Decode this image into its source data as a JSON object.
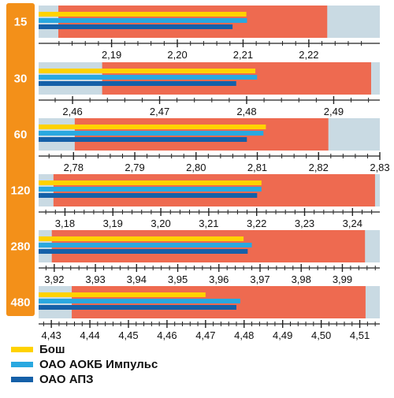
{
  "chart_data": {
    "type": "bar",
    "style": "horizontal bars in bullet-style panels, one independent axis per category",
    "colors": {
      "sidebar": "#F39019",
      "range_bg": "#C9DAE3",
      "range_fill": "#EE6A50",
      "series": [
        "#FFD200",
        "#29A8E0",
        "#1560A8"
      ]
    },
    "series": [
      {
        "name": "Бош"
      },
      {
        "name": "ОАО АОКБ Импульс"
      },
      {
        "name": "ОАО АПЗ"
      }
    ],
    "groups": [
      {
        "category": "15",
        "axis": {
          "min": 2.1789,
          "max": 2.2308,
          "ticks": [
            "2,19",
            "2,20",
            "2,21",
            "2,22"
          ],
          "tick_values": [
            2.19,
            2.2,
            2.21,
            2.22
          ]
        },
        "range": [
          2.1819,
          2.2228
        ],
        "values": [
          2.2105,
          2.2106,
          2.2084
        ]
      },
      {
        "category": "30",
        "axis": {
          "min": 2.4561,
          "max": 2.4953,
          "ticks": [
            "2,46",
            "2,47",
            "2,48",
            "2,49"
          ],
          "tick_values": [
            2.46,
            2.47,
            2.48,
            2.49
          ]
        },
        "range": [
          2.4634,
          2.4943
        ],
        "values": [
          2.481,
          2.4812,
          2.4788
        ]
      },
      {
        "category": "60",
        "axis": {
          "min": 2.7743,
          "max": 2.83,
          "ticks": [
            "2,78",
            "2,79",
            "2,80",
            "2,81",
            "2,82",
            "2,83"
          ],
          "tick_values": [
            2.78,
            2.79,
            2.8,
            2.81,
            2.82,
            2.83
          ]
        },
        "range": [
          2.7802,
          2.8216
        ],
        "values": [
          2.8114,
          2.811,
          2.8083
        ]
      },
      {
        "category": "120",
        "axis": {
          "min": 3.1745,
          "max": 3.2457,
          "ticks": [
            "3,18",
            "3,19",
            "3,20",
            "3,21",
            "3,22",
            "3,23",
            "3,24"
          ],
          "tick_values": [
            3.18,
            3.19,
            3.2,
            3.21,
            3.22,
            3.23,
            3.24
          ]
        },
        "range": [
          3.1776,
          3.2447
        ],
        "values": [
          3.221,
          3.221,
          3.2201
        ]
      },
      {
        "category": "280",
        "axis": {
          "min": 3.9162,
          "max": 3.9991,
          "ticks": [
            "3,92",
            "3,93",
            "3,94",
            "3,95",
            "3,96",
            "3,97",
            "3,98",
            "3,99"
          ],
          "tick_values": [
            3.92,
            3.93,
            3.94,
            3.95,
            3.96,
            3.97,
            3.98,
            3.99
          ]
        },
        "range": [
          3.9194,
          3.9955
        ],
        "values": [
          3.966,
          3.968,
          3.967
        ]
      },
      {
        "category": "480",
        "axis": {
          "min": 4.4267,
          "max": 4.5152,
          "ticks": [
            "4,43",
            "4,44",
            "4,45",
            "4,46",
            "4,47",
            "4,48",
            "4,49",
            "4,50",
            "4,51"
          ],
          "tick_values": [
            4.43,
            4.44,
            4.45,
            4.46,
            4.47,
            4.48,
            4.49,
            4.5,
            4.51
          ]
        },
        "range": [
          4.4353,
          4.5115
        ],
        "values": [
          4.47,
          4.479,
          4.478
        ]
      }
    ],
    "legend_position": "bottom-left",
    "grid": false
  }
}
